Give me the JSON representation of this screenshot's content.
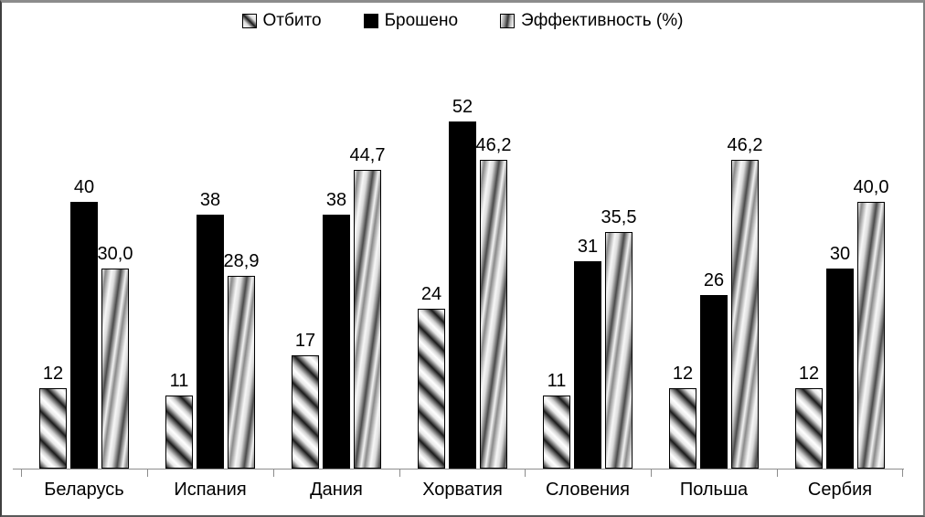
{
  "frame": {
    "background": "#ffffff",
    "border_color": "#7f7f7f"
  },
  "chart_data": {
    "type": "bar",
    "title": "",
    "xlabel": "",
    "ylabel": "",
    "categories": [
      "Беларусь",
      "Испания",
      "Дания",
      "Хорватия",
      "Словения",
      "Польша",
      "Сербия"
    ],
    "series": [
      {
        "name": "Отбито",
        "pattern": "diagonal-hatch-gradient",
        "values": [
          12,
          11,
          17,
          24,
          11,
          12,
          12
        ],
        "labels": [
          "12",
          "11",
          "17",
          "24",
          "11",
          "12",
          "12"
        ]
      },
      {
        "name": "Брошено",
        "pattern": "solid-black",
        "color": "#000000",
        "values": [
          40,
          38,
          38,
          52,
          31,
          26,
          30
        ],
        "labels": [
          "40",
          "38",
          "38",
          "52",
          "31",
          "26",
          "30"
        ]
      },
      {
        "name": "Эффективность (%)",
        "pattern": "steep-gradient-stripes",
        "values": [
          30.0,
          28.9,
          44.7,
          46.2,
          35.5,
          46.2,
          40.0
        ],
        "labels": [
          "30,0",
          "28,9",
          "44,7",
          "46,2",
          "35,5",
          "46,2",
          "40,0"
        ]
      }
    ],
    "ylim": [
      0,
      62
    ],
    "grid": false,
    "legend_position": "top",
    "value_labels": true,
    "decimal_separator": ",",
    "axis_color": "#8c8c8c"
  }
}
